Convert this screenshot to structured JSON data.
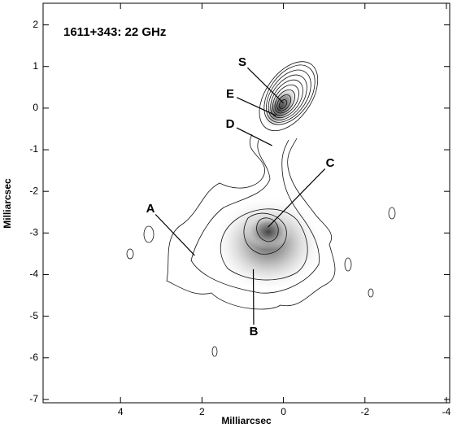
{
  "chart_data": {
    "type": "contour",
    "title": "1611+343: 22 GHz",
    "x_label": "Milliarcsec",
    "y_label": "Milliarcsec",
    "xlim": [
      5.9,
      -4.08
    ],
    "ylim": [
      -7.08,
      2.52
    ],
    "xticks": [
      4,
      2,
      0,
      -2,
      -4
    ],
    "yticks": [
      2,
      1,
      0,
      -1,
      -2,
      -3,
      -4,
      -5,
      -6,
      -7
    ],
    "annotations": [
      {
        "text": "S",
        "x": 0.0,
        "y": 0.12
      },
      {
        "text": "E",
        "x": 0.18,
        "y": -0.18
      },
      {
        "text": "D",
        "x": 0.28,
        "y": -0.9
      },
      {
        "text": "C",
        "x": 0.38,
        "y": -2.86
      },
      {
        "text": "A",
        "x": 2.18,
        "y": -3.54
      },
      {
        "text": "B",
        "x": 0.74,
        "y": -3.87
      }
    ]
  }
}
